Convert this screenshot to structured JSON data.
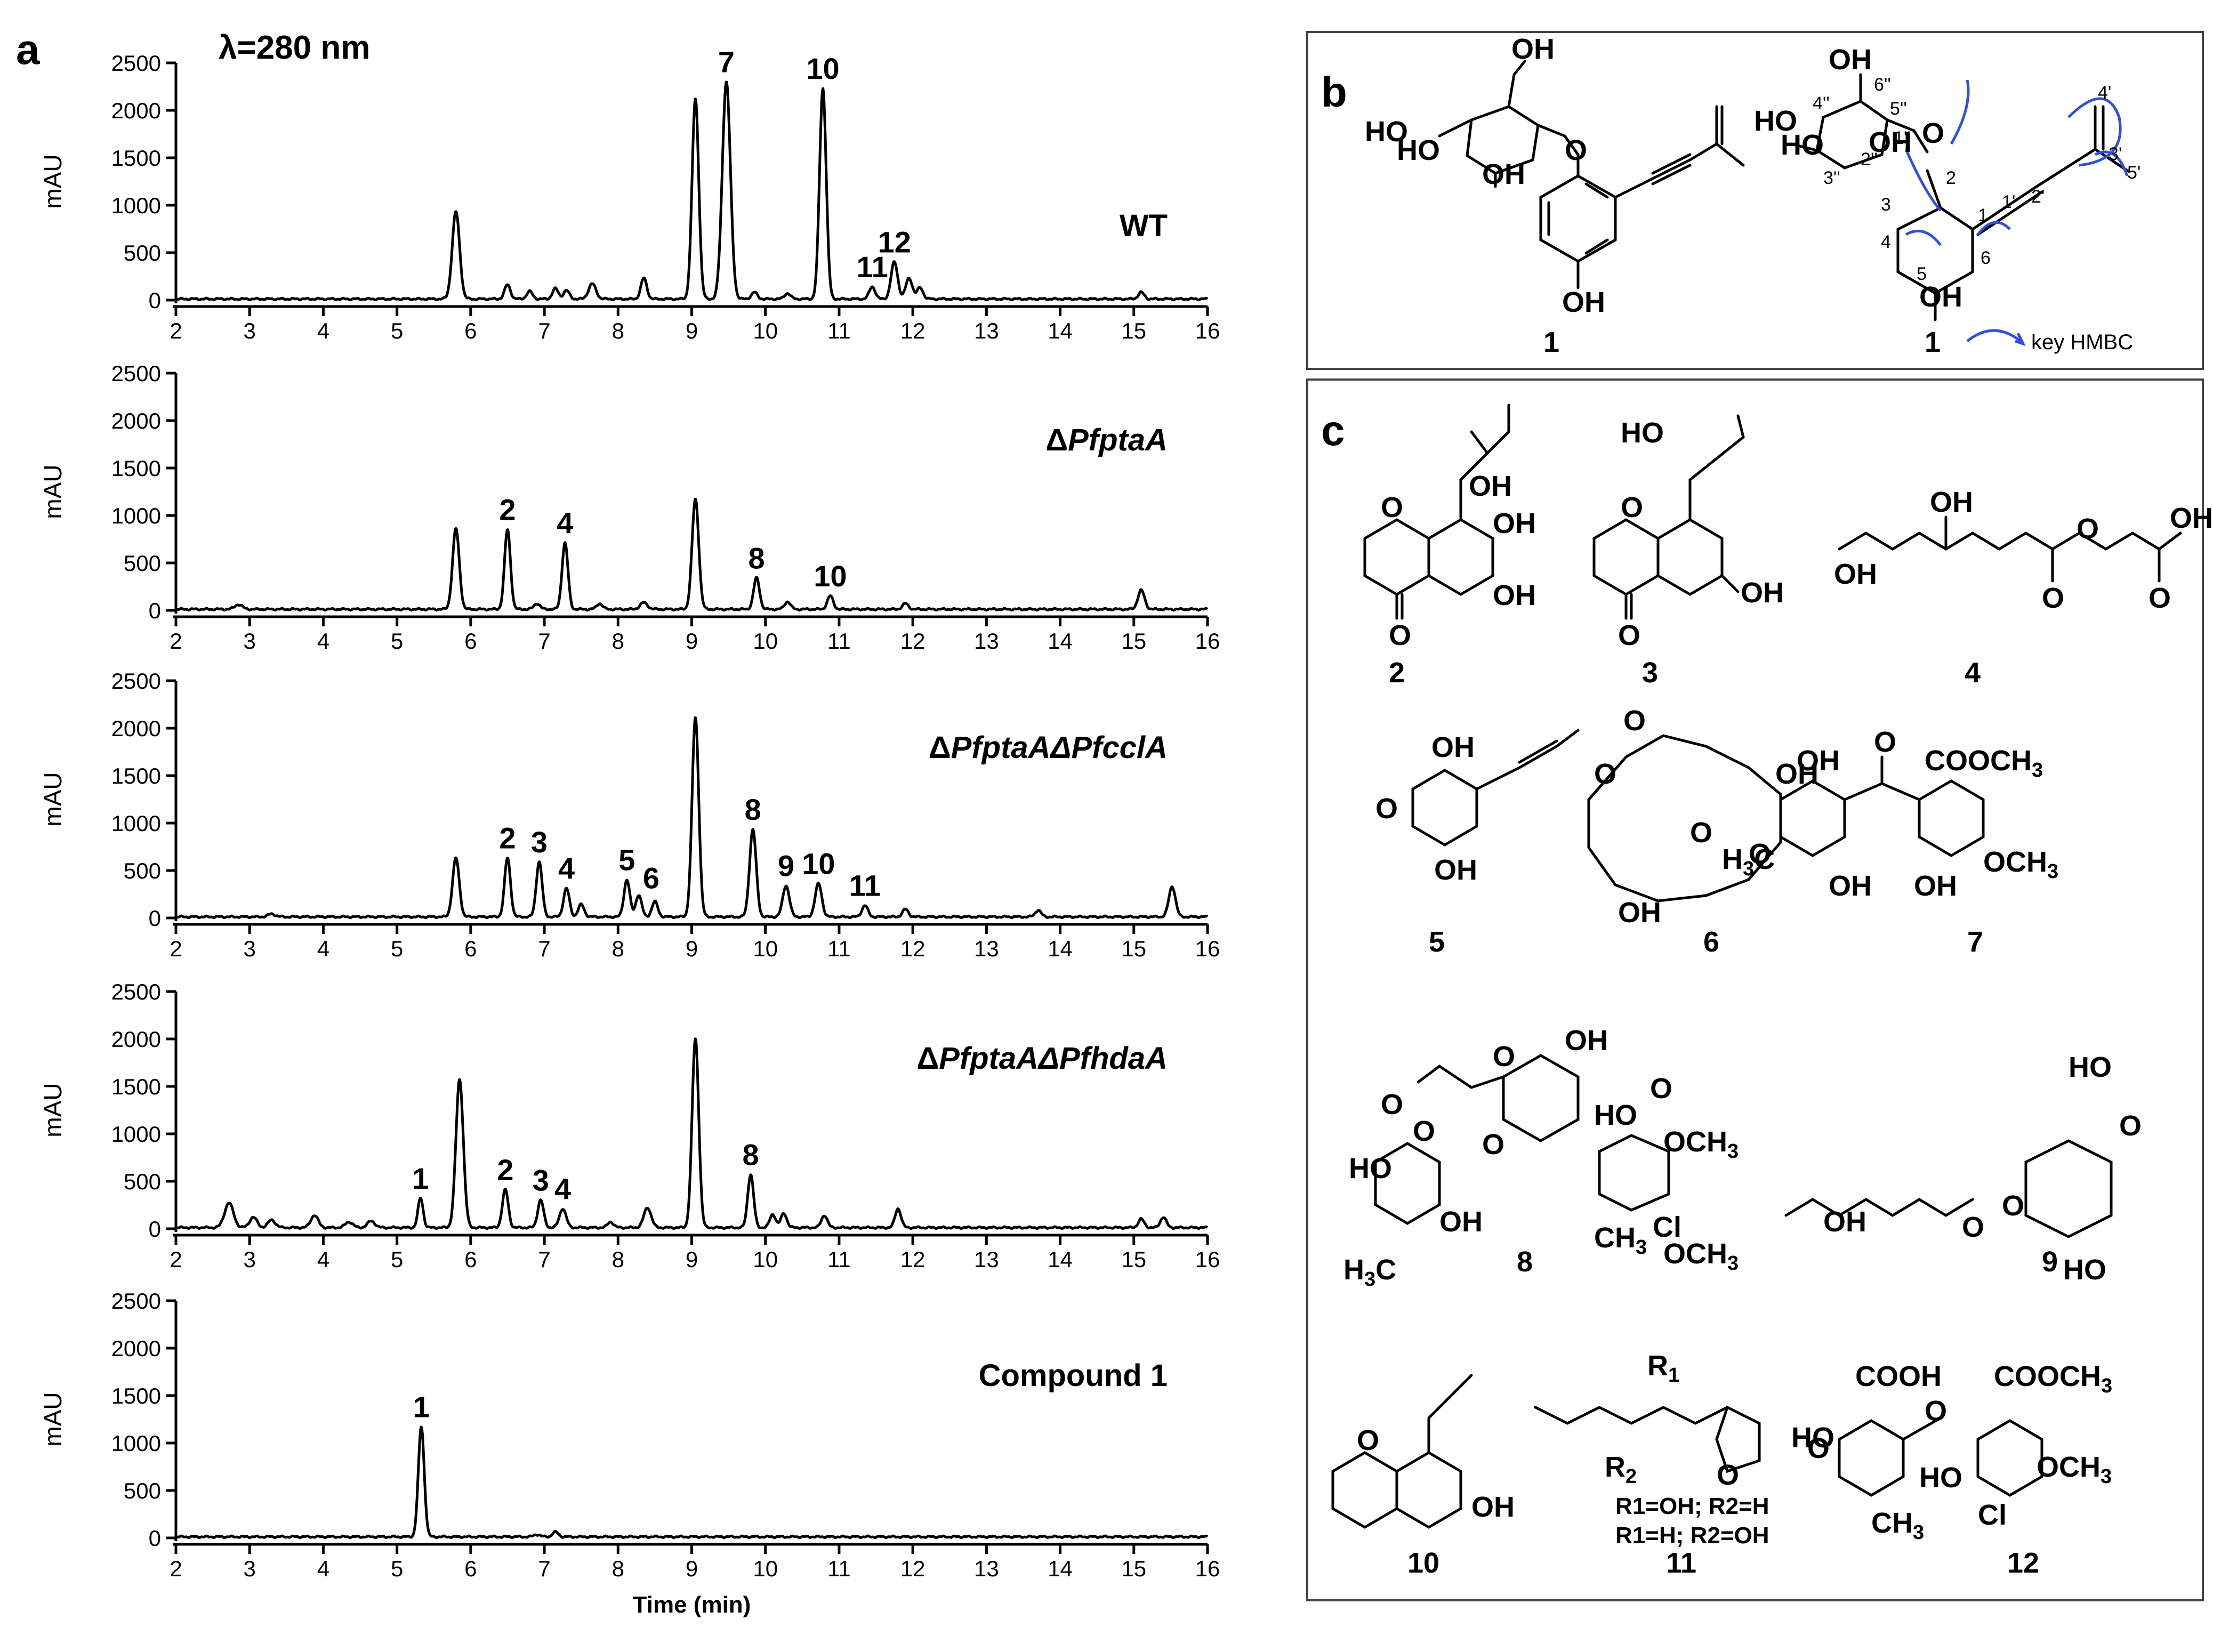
{
  "panel_labels": {
    "a": "a",
    "b": "b",
    "c": "c"
  },
  "wavelength_label": "λ=280 nm",
  "chart_data": [
    {
      "type": "line",
      "label": "WT",
      "prefix": "",
      "italic": "",
      "ylabel": "mAU",
      "xlim": [
        2,
        16
      ],
      "ylim": [
        0,
        2500
      ],
      "xticks": [
        2,
        3,
        4,
        5,
        6,
        7,
        8,
        9,
        10,
        11,
        12,
        13,
        14,
        15,
        16
      ],
      "yticks": [
        0,
        500,
        1000,
        1500,
        2000,
        2500
      ],
      "peaks": [
        [
          5.8,
          920,
          0.05
        ],
        [
          6.5,
          150,
          0.04
        ],
        [
          6.8,
          80,
          0.04
        ],
        [
          7.15,
          110,
          0.04
        ],
        [
          7.3,
          90,
          0.04
        ],
        [
          7.65,
          160,
          0.05
        ],
        [
          8.35,
          220,
          0.04
        ],
        [
          9.05,
          2110,
          0.045
        ],
        [
          9.47,
          2290,
          0.055
        ],
        [
          10.78,
          2220,
          0.045
        ],
        [
          9.85,
          70,
          0.04
        ],
        [
          10.3,
          60,
          0.04
        ],
        [
          11.45,
          130,
          0.04
        ],
        [
          11.75,
          390,
          0.045
        ],
        [
          11.95,
          220,
          0.045
        ],
        [
          12.1,
          120,
          0.04
        ],
        [
          15.1,
          70,
          0.04
        ]
      ],
      "peak_labels": [
        {
          "text": "7",
          "x": 9.47,
          "y": 2290
        },
        {
          "text": "10",
          "x": 10.78,
          "y": 2220
        },
        {
          "text": "11",
          "x": 11.45,
          "y": 130
        },
        {
          "text": "12",
          "x": 11.75,
          "y": 390
        }
      ]
    },
    {
      "type": "line",
      "label": "",
      "prefix": "Δ",
      "italic": "PfptaA",
      "ylabel": "mAU",
      "xlim": [
        2,
        16
      ],
      "ylim": [
        0,
        2500
      ],
      "xticks": [
        2,
        3,
        4,
        5,
        6,
        7,
        8,
        9,
        10,
        11,
        12,
        13,
        14,
        15,
        16
      ],
      "yticks": [
        0,
        500,
        1000,
        1500,
        2000,
        2500
      ],
      "peaks": [
        [
          2.85,
          50,
          0.05
        ],
        [
          5.8,
          850,
          0.045
        ],
        [
          6.5,
          840,
          0.04
        ],
        [
          6.9,
          60,
          0.04
        ],
        [
          7.28,
          700,
          0.04
        ],
        [
          7.75,
          60,
          0.04
        ],
        [
          8.35,
          70,
          0.05
        ],
        [
          9.05,
          1160,
          0.045
        ],
        [
          9.88,
          330,
          0.04
        ],
        [
          10.3,
          80,
          0.04
        ],
        [
          10.88,
          140,
          0.04
        ],
        [
          11.9,
          60,
          0.04
        ],
        [
          15.1,
          200,
          0.045
        ]
      ],
      "peak_labels": [
        {
          "text": "2",
          "x": 6.5,
          "y": 840
        },
        {
          "text": "4",
          "x": 7.28,
          "y": 700
        },
        {
          "text": "8",
          "x": 9.88,
          "y": 330
        },
        {
          "text": "10",
          "x": 10.88,
          "y": 140
        }
      ]
    },
    {
      "type": "line",
      "label": "",
      "prefix": "Δ",
      "italic": "PfptaAΔPfcclA",
      "ylabel": "mAU",
      "xlim": [
        2,
        16
      ],
      "ylim": [
        0,
        2500
      ],
      "xticks": [
        2,
        3,
        4,
        5,
        6,
        7,
        8,
        9,
        10,
        11,
        12,
        13,
        14,
        15,
        16
      ],
      "yticks": [
        0,
        500,
        1000,
        1500,
        2000,
        2500
      ],
      "peaks": [
        [
          3.3,
          30,
          0.05
        ],
        [
          5.8,
          620,
          0.045
        ],
        [
          6.5,
          620,
          0.04
        ],
        [
          6.93,
          580,
          0.04
        ],
        [
          7.3,
          300,
          0.04
        ],
        [
          7.5,
          130,
          0.04
        ],
        [
          8.12,
          390,
          0.04
        ],
        [
          8.28,
          230,
          0.04
        ],
        [
          8.5,
          160,
          0.04
        ],
        [
          9.05,
          2100,
          0.045
        ],
        [
          9.83,
          920,
          0.045
        ],
        [
          10.28,
          330,
          0.045
        ],
        [
          10.72,
          350,
          0.045
        ],
        [
          11.35,
          120,
          0.04
        ],
        [
          11.9,
          80,
          0.04
        ],
        [
          13.7,
          70,
          0.04
        ],
        [
          15.52,
          320,
          0.045
        ]
      ],
      "peak_labels": [
        {
          "text": "2",
          "x": 6.5,
          "y": 620
        },
        {
          "text": "3",
          "x": 6.93,
          "y": 580
        },
        {
          "text": "4",
          "x": 7.3,
          "y": 300
        },
        {
          "text": "5",
          "x": 8.12,
          "y": 390
        },
        {
          "text": "6",
          "x": 8.45,
          "y": 200
        },
        {
          "text": "8",
          "x": 9.83,
          "y": 920
        },
        {
          "text": "9",
          "x": 10.28,
          "y": 330
        },
        {
          "text": "10",
          "x": 10.72,
          "y": 350
        },
        {
          "text": "11",
          "x": 11.35,
          "y": 120
        }
      ]
    },
    {
      "type": "line",
      "label": "",
      "prefix": "Δ",
      "italic": "PfptaAΔPfhdaA",
      "ylabel": "mAU",
      "xlim": [
        2,
        16
      ],
      "ylim": [
        0,
        2500
      ],
      "xticks": [
        2,
        3,
        4,
        5,
        6,
        7,
        8,
        9,
        10,
        11,
        12,
        13,
        14,
        15,
        16
      ],
      "yticks": [
        0,
        500,
        1000,
        1500,
        2000,
        2500
      ],
      "peaks": [
        [
          2.72,
          260,
          0.06
        ],
        [
          3.05,
          110,
          0.05
        ],
        [
          3.3,
          80,
          0.05
        ],
        [
          3.88,
          130,
          0.05
        ],
        [
          4.35,
          60,
          0.05
        ],
        [
          4.65,
          70,
          0.05
        ],
        [
          5.32,
          310,
          0.035
        ],
        [
          5.85,
          1560,
          0.05
        ],
        [
          6.47,
          400,
          0.04
        ],
        [
          6.95,
          290,
          0.04
        ],
        [
          7.25,
          200,
          0.045
        ],
        [
          7.9,
          60,
          0.04
        ],
        [
          8.4,
          210,
          0.05
        ],
        [
          9.05,
          1990,
          0.045
        ],
        [
          9.8,
          560,
          0.04
        ],
        [
          10.1,
          140,
          0.04
        ],
        [
          10.25,
          150,
          0.04
        ],
        [
          10.8,
          130,
          0.04
        ],
        [
          11.8,
          200,
          0.04
        ],
        [
          15.1,
          90,
          0.04
        ],
        [
          15.4,
          110,
          0.04
        ]
      ],
      "peak_labels": [
        {
          "text": "1",
          "x": 5.32,
          "y": 310
        },
        {
          "text": "2",
          "x": 6.47,
          "y": 400
        },
        {
          "text": "3",
          "x": 6.95,
          "y": 290
        },
        {
          "text": "4",
          "x": 7.25,
          "y": 200
        },
        {
          "text": "8",
          "x": 9.8,
          "y": 560
        }
      ]
    },
    {
      "type": "line",
      "label": "Compound 1",
      "prefix": "",
      "italic": "",
      "ylabel": "mAU",
      "xlabel": "Time (min)",
      "xlim": [
        2,
        16
      ],
      "ylim": [
        0,
        2500
      ],
      "xticks": [
        2,
        3,
        4,
        5,
        6,
        7,
        8,
        9,
        10,
        11,
        12,
        13,
        14,
        15,
        16
      ],
      "yticks": [
        0,
        500,
        1000,
        1500,
        2000,
        2500
      ],
      "peaks": [
        [
          5.33,
          1160,
          0.04
        ],
        [
          6.9,
          25,
          0.04
        ],
        [
          7.15,
          50,
          0.04
        ]
      ],
      "peak_labels": [
        {
          "text": "1",
          "x": 5.33,
          "y": 1160
        }
      ]
    }
  ],
  "structures_b": {
    "compound_label_left": "1",
    "compound_label_right": "1",
    "legend": "key HMBC",
    "oh_labels": [
      "OH",
      "HO",
      "HO",
      "OH",
      "O",
      "OH"
    ],
    "numbering": [
      "6''",
      "5''",
      "4''",
      "3''",
      "2''",
      "1''",
      "2",
      "3",
      "4",
      "5",
      "6",
      "1",
      "1'",
      "2'",
      "3'",
      "4'",
      "5'"
    ]
  },
  "structures_c": {
    "compounds": [
      "2",
      "3",
      "4",
      "5",
      "6",
      "7",
      "8",
      "9",
      "10",
      "11",
      "12"
    ],
    "s2": [
      "OH",
      "OH",
      "OH",
      "O",
      "O"
    ],
    "s3": [
      "HO",
      "O",
      "O",
      "OH"
    ],
    "s4": [
      "OH",
      "OH",
      "O",
      "O",
      "O",
      "OH"
    ],
    "s5": [
      "OH",
      "O",
      "OH"
    ],
    "s6": [
      "O",
      "O",
      "OH",
      "O",
      "O",
      "OH"
    ],
    "s7": [
      "OH",
      "O",
      "COOCH",
      "3",
      "H",
      "3",
      "C",
      "OH",
      "OH",
      "OCH",
      "3"
    ],
    "s8": [
      "OH",
      "O",
      "O",
      "HO",
      "O",
      "OCH",
      "3",
      "HO",
      "O",
      "O",
      "OH",
      "CH",
      "3",
      "Cl",
      "OCH",
      "3",
      "H",
      "3",
      "C"
    ],
    "s9": [
      "HO",
      "O",
      "O",
      "OH",
      "O",
      "HO"
    ],
    "s10": [
      "O",
      "OH"
    ],
    "s11": [
      "R",
      "1",
      "R",
      "2",
      "O",
      "O",
      "R1=OH; R2=H",
      "R1=H; R2=OH"
    ],
    "s12": [
      "COOH",
      "COOCH",
      "3",
      "HO",
      "O",
      "HO",
      "OCH",
      "3",
      "CH",
      "3",
      "Cl"
    ]
  }
}
